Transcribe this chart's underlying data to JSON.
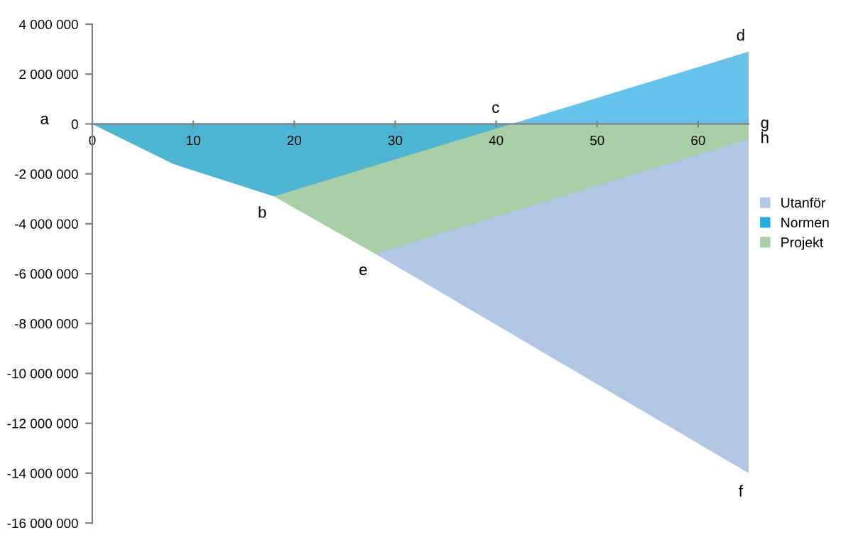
{
  "chart_data": {
    "type": "area",
    "series": [
      {
        "name": "Utanför",
        "color": "#b0c6e2",
        "x": [
          0,
          8,
          18,
          28,
          65
        ],
        "values": [
          0,
          -1600000,
          -2900000,
          -5200000,
          -14000000
        ]
      },
      {
        "name": "Normen",
        "color": "#29abe2",
        "x": [
          0,
          8,
          18,
          41.5,
          65
        ],
        "values": [
          0,
          -1600000,
          -2900000,
          0,
          2900000
        ]
      },
      {
        "name": "Projekt",
        "color": "#a8cfa5",
        "x": [
          0,
          8,
          18,
          28,
          65
        ],
        "values": [
          0,
          -1600000,
          -2900000,
          -5200000,
          -600000
        ]
      }
    ],
    "xlim": [
      0,
      65
    ],
    "xticks": [
      0,
      10,
      20,
      30,
      40,
      50,
      60
    ],
    "ylim": [
      -16000000,
      4000000
    ],
    "yticks": [
      {
        "value": -16000000,
        "label": "-16 000 000"
      },
      {
        "value": -14000000,
        "label": "-14 000 000"
      },
      {
        "value": -12000000,
        "label": "-12 000 000"
      },
      {
        "value": -10000000,
        "label": "-10 000 000"
      },
      {
        "value": -8000000,
        "label": "-8 000 000"
      },
      {
        "value": -6000000,
        "label": "-6 000 000"
      },
      {
        "value": -4000000,
        "label": "-4 000 000"
      },
      {
        "value": -2000000,
        "label": "-2 000 000"
      },
      {
        "value": 0,
        "label": "0"
      },
      {
        "value": 2000000,
        "label": "2 000 000"
      },
      {
        "value": 4000000,
        "label": "4 000 000"
      }
    ],
    "annotations": [
      {
        "text": "a",
        "x": 0,
        "y": 0
      },
      {
        "text": "b",
        "x": 18,
        "y": -2900000
      },
      {
        "text": "c",
        "x": 41.5,
        "y": 0
      },
      {
        "text": "d",
        "x": 65,
        "y": 2900000
      },
      {
        "text": "e",
        "x": 28,
        "y": -5200000
      },
      {
        "text": "f",
        "x": 65,
        "y": -14000000
      },
      {
        "text": "g",
        "x": 65,
        "y": 0
      },
      {
        "text": "h",
        "x": 65,
        "y": -600000
      }
    ],
    "legend": "right",
    "grid": false
  }
}
